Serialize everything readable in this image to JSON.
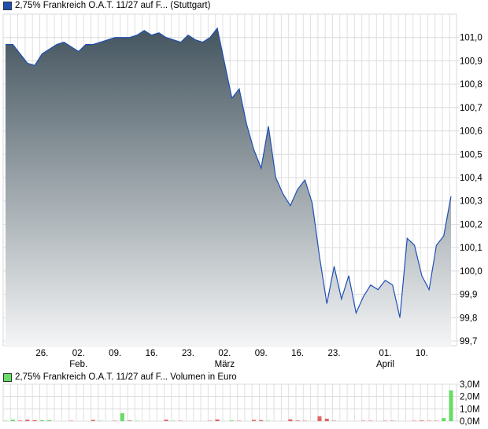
{
  "price_legend": {
    "label": "2,75% Frankreich O.A.T. 11/27 auf F... (Stuttgart)",
    "color": "#1f4fb5"
  },
  "volume_legend": {
    "label": "2,75% Frankreich O.A.T. 11/27 auf F... Volumen in Euro",
    "color": "#66dd66"
  },
  "chart_data": [
    {
      "type": "area",
      "ylim": [
        99.68,
        101.1
      ],
      "grid": true,
      "yticks": [
        101.0,
        100.9,
        100.8,
        100.7,
        100.6,
        100.5,
        100.4,
        100.3,
        100.2,
        100.1,
        100.0,
        99.9,
        99.8,
        99.7
      ],
      "ytick_labels": [
        "101,0",
        "100,9",
        "100,8",
        "100,7",
        "100,6",
        "100,5",
        "100,4",
        "100,3",
        "100,2",
        "100,1",
        "100,0",
        "99,9",
        "99,8",
        "99,7"
      ],
      "xticks": [
        {
          "date": "2026-01-26",
          "label": "26.",
          "sub": ""
        },
        {
          "date": "2026-02-02",
          "label": "02.",
          "sub": "Feb."
        },
        {
          "date": "2026-02-09",
          "label": "09.",
          "sub": ""
        },
        {
          "date": "2026-02-16",
          "label": "16.",
          "sub": ""
        },
        {
          "date": "2026-02-23",
          "label": "23.",
          "sub": ""
        },
        {
          "date": "2026-03-02",
          "label": "02.",
          "sub": "März"
        },
        {
          "date": "2026-03-09",
          "label": "09.",
          "sub": ""
        },
        {
          "date": "2026-03-16",
          "label": "16.",
          "sub": ""
        },
        {
          "date": "2026-03-23",
          "label": "23.",
          "sub": ""
        },
        {
          "date": "2026-04-01",
          "label": "01.",
          "sub": "April"
        },
        {
          "date": "2026-04-10",
          "label": "10.",
          "sub": ""
        }
      ],
      "line_color": "#1f4fb5",
      "fill_top": "#44555f",
      "fill_bottom": "#f4f5f6",
      "dates": [
        "2026-01-19",
        "2026-01-20",
        "2026-01-21",
        "2026-01-22",
        "2026-01-23",
        "2026-01-26",
        "2026-01-27",
        "2026-01-28",
        "2026-01-29",
        "2026-01-30",
        "2026-02-02",
        "2026-02-03",
        "2026-02-04",
        "2026-02-05",
        "2026-02-06",
        "2026-02-09",
        "2026-02-10",
        "2026-02-11",
        "2026-02-12",
        "2026-02-13",
        "2026-02-16",
        "2026-02-17",
        "2026-02-18",
        "2026-02-19",
        "2026-02-20",
        "2026-02-23",
        "2026-02-24",
        "2026-02-25",
        "2026-02-26",
        "2026-02-27",
        "2026-03-02",
        "2026-03-03",
        "2026-03-04",
        "2026-03-05",
        "2026-03-06",
        "2026-03-09",
        "2026-03-10",
        "2026-03-11",
        "2026-03-12",
        "2026-03-13",
        "2026-03-16",
        "2026-03-17",
        "2026-03-18",
        "2026-03-19",
        "2026-03-20",
        "2026-03-23",
        "2026-03-24",
        "2026-03-25",
        "2026-03-26",
        "2026-03-27",
        "2026-03-30",
        "2026-03-31",
        "2026-04-01",
        "2026-04-02",
        "2026-04-07",
        "2026-04-08",
        "2026-04-09",
        "2026-04-10",
        "2026-04-13",
        "2026-04-14",
        "2026-04-15",
        "2026-04-16"
      ],
      "values": [
        100.97,
        100.97,
        100.93,
        100.89,
        100.88,
        100.93,
        100.95,
        100.97,
        100.98,
        100.96,
        100.94,
        100.97,
        100.97,
        100.98,
        100.99,
        101.0,
        101.0,
        101.0,
        101.01,
        101.03,
        101.01,
        101.02,
        101.0,
        100.99,
        100.98,
        101.01,
        100.99,
        100.98,
        101.0,
        101.04,
        100.89,
        100.74,
        100.78,
        100.63,
        100.52,
        100.44,
        100.62,
        100.4,
        100.33,
        100.28,
        100.35,
        100.39,
        100.29,
        100.06,
        99.86,
        100.02,
        99.88,
        99.98,
        99.82,
        99.89,
        99.94,
        99.92,
        99.96,
        99.94,
        99.8,
        100.14,
        100.11,
        99.98,
        99.92,
        100.11,
        100.15,
        100.32
      ]
    },
    {
      "type": "bar",
      "ylim": [
        0,
        3.0
      ],
      "yticks": [
        0,
        1,
        2,
        3
      ],
      "ytick_labels": [
        "0,0M",
        "1,0M",
        "2,0M",
        "3,0M"
      ],
      "up_color": "#66dd66",
      "down_color": "#dd6666",
      "volumes": [
        0.03,
        0.12,
        0.05,
        0.12,
        0.08,
        0.08,
        0.08,
        0,
        0,
        0.03,
        0,
        0,
        0.1,
        0.03,
        0,
        0.03,
        0.65,
        0.05,
        0.03,
        0,
        0,
        0,
        0.12,
        0.03,
        0.03,
        0,
        0,
        0,
        0.03,
        0.14,
        0,
        0.05,
        0.03,
        0,
        0.1,
        0.08,
        0.03,
        0,
        0,
        0.15,
        0.05,
        0.03,
        0,
        0.4,
        0.2,
        0.03,
        0,
        0,
        0,
        0.03,
        0.03,
        0,
        0.03,
        0.03,
        0,
        0,
        0.03,
        0.05,
        0.03,
        0.03,
        0.25,
        2.5
      ],
      "directions": [
        "up",
        "up",
        "down",
        "down",
        "down",
        "up",
        "up",
        "up",
        "up",
        "down",
        "up",
        "down",
        "down",
        "up",
        "up",
        "down",
        "up",
        "down",
        "up",
        "up",
        "up",
        "up",
        "down",
        "up",
        "down",
        "up",
        "up",
        "up",
        "down",
        "down",
        "up",
        "up",
        "down",
        "down",
        "down",
        "down",
        "up",
        "up",
        "up",
        "down",
        "down",
        "down",
        "down",
        "down",
        "down",
        "down",
        "down",
        "down",
        "down",
        "down",
        "down",
        "down",
        "down",
        "down",
        "down",
        "down",
        "down",
        "down",
        "down",
        "down",
        "up",
        "up"
      ]
    }
  ]
}
